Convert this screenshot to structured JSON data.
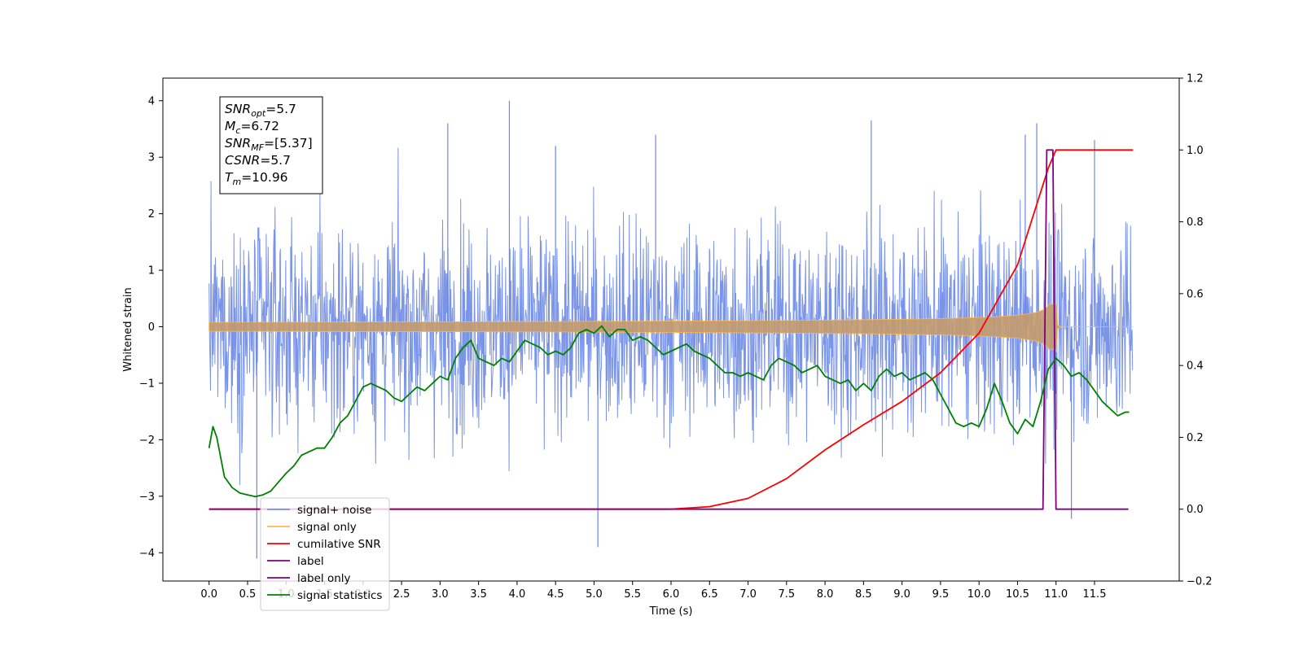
{
  "chart_data": {
    "type": "line",
    "xlabel": "Time (s)",
    "ylabel_left": "Whitened strain",
    "ylabel_right": "",
    "xlim": [
      -0.6,
      12.6
    ],
    "ylim_left": [
      -4.5,
      4.4
    ],
    "ylim_right": [
      -0.2,
      1.2
    ],
    "x_ticks": [
      "0.0",
      "0.5",
      "1.0",
      "1.5",
      "2.0",
      "2.5",
      "3.0",
      "3.5",
      "4.0",
      "4.5",
      "5.0",
      "5.5",
      "6.0",
      "6.5",
      "7.0",
      "7.5",
      "8.0",
      "8.5",
      "9.0",
      "9.5",
      "10.0",
      "10.5",
      "11.0",
      "11.5"
    ],
    "y_ticks_left": [
      "4",
      "3",
      "2",
      "1",
      "0",
      "−1",
      "−2",
      "−3",
      "−4"
    ],
    "y_ticks_right": [
      "1.2",
      "1.0",
      "0.8",
      "0.6",
      "0.4",
      "0.2",
      "0.0",
      "−0.2"
    ],
    "grid": false,
    "legend_position": "lower-left",
    "series": [
      {
        "name": "signal+ noise",
        "axis": "left",
        "color": "#6b88e6",
        "kind": "noise",
        "x_range": [
          0.0,
          12.0
        ],
        "std": 0.9,
        "peak": [
          -4.1,
          4.0
        ]
      },
      {
        "name": "signal only",
        "axis": "left",
        "color": "#ffb84d",
        "kind": "chirp",
        "x_range": [
          0.0,
          12.0
        ],
        "merger_time": 10.96,
        "peak_amplitude": 0.4
      },
      {
        "name": "cumilative SNR",
        "axis": "right",
        "color": "#ff0000",
        "x": [
          0.0,
          6.0,
          6.5,
          7.0,
          7.5,
          8.0,
          8.5,
          9.0,
          9.5,
          10.0,
          10.5,
          10.9,
          11.0,
          12.0
        ],
        "values": [
          0.0,
          0.0,
          0.007,
          0.03,
          0.085,
          0.165,
          0.235,
          0.3,
          0.38,
          0.49,
          0.68,
          0.95,
          1.0,
          1.0
        ]
      },
      {
        "name": "label",
        "axis": "right",
        "color": "#800080",
        "x": [
          0.0,
          10.83,
          10.88,
          10.96,
          11.0,
          11.94
        ],
        "values": [
          0.0,
          0.0,
          1.0,
          1.0,
          0.0,
          0.0
        ]
      },
      {
        "name": "label only",
        "axis": "right",
        "color": "#800080",
        "x": [],
        "values": []
      },
      {
        "name": "signal statistics",
        "axis": "right",
        "color": "#008000",
        "x": [
          0.0,
          0.05,
          0.1,
          0.2,
          0.3,
          0.4,
          0.5,
          0.6,
          0.7,
          0.8,
          0.9,
          1.0,
          1.1,
          1.2,
          1.3,
          1.4,
          1.5,
          1.6,
          1.7,
          1.8,
          1.9,
          2.0,
          2.1,
          2.2,
          2.3,
          2.4,
          2.5,
          2.6,
          2.7,
          2.8,
          2.9,
          3.0,
          3.1,
          3.2,
          3.3,
          3.4,
          3.5,
          3.6,
          3.7,
          3.8,
          3.9,
          4.0,
          4.1,
          4.2,
          4.3,
          4.4,
          4.5,
          4.6,
          4.7,
          4.8,
          4.9,
          5.0,
          5.1,
          5.2,
          5.3,
          5.4,
          5.5,
          5.6,
          5.7,
          5.8,
          5.9,
          6.0,
          6.1,
          6.2,
          6.3,
          6.4,
          6.5,
          6.6,
          6.7,
          6.8,
          6.9,
          7.0,
          7.1,
          7.2,
          7.3,
          7.4,
          7.5,
          7.6,
          7.7,
          7.8,
          7.9,
          8.0,
          8.1,
          8.2,
          8.3,
          8.4,
          8.5,
          8.6,
          8.7,
          8.8,
          8.9,
          9.0,
          9.1,
          9.2,
          9.3,
          9.4,
          9.5,
          9.6,
          9.7,
          9.8,
          9.9,
          10.0,
          10.1,
          10.2,
          10.3,
          10.4,
          10.5,
          10.6,
          10.7,
          10.8,
          10.9,
          11.0,
          11.1,
          11.2,
          11.3,
          11.4,
          11.5,
          11.6,
          11.7,
          11.8,
          11.9,
          11.95
        ],
        "values": [
          0.17,
          0.23,
          0.2,
          0.09,
          0.06,
          0.045,
          0.04,
          0.035,
          0.04,
          0.05,
          0.075,
          0.1,
          0.12,
          0.15,
          0.16,
          0.17,
          0.17,
          0.2,
          0.24,
          0.26,
          0.3,
          0.34,
          0.35,
          0.34,
          0.33,
          0.31,
          0.3,
          0.32,
          0.34,
          0.33,
          0.35,
          0.37,
          0.36,
          0.42,
          0.45,
          0.47,
          0.42,
          0.41,
          0.4,
          0.42,
          0.41,
          0.44,
          0.47,
          0.46,
          0.45,
          0.43,
          0.44,
          0.43,
          0.45,
          0.49,
          0.5,
          0.49,
          0.51,
          0.48,
          0.5,
          0.5,
          0.47,
          0.48,
          0.47,
          0.45,
          0.43,
          0.44,
          0.45,
          0.46,
          0.44,
          0.43,
          0.42,
          0.4,
          0.38,
          0.38,
          0.37,
          0.38,
          0.37,
          0.36,
          0.4,
          0.42,
          0.41,
          0.4,
          0.38,
          0.39,
          0.4,
          0.37,
          0.36,
          0.35,
          0.36,
          0.33,
          0.35,
          0.33,
          0.37,
          0.39,
          0.37,
          0.38,
          0.36,
          0.37,
          0.38,
          0.36,
          0.32,
          0.28,
          0.24,
          0.23,
          0.24,
          0.23,
          0.28,
          0.35,
          0.3,
          0.24,
          0.21,
          0.25,
          0.23,
          0.3,
          0.39,
          0.42,
          0.4,
          0.37,
          0.38,
          0.36,
          0.33,
          0.3,
          0.28,
          0.26,
          0.27,
          0.27
        ]
      }
    ],
    "annotation": {
      "lines": [
        {
          "math": "SNR",
          "sub": "opt",
          "value": "=5.7"
        },
        {
          "math": "M",
          "sub": "c",
          "value": "=6.72"
        },
        {
          "math": "SNR",
          "sub": "MF",
          "value": "=[5.37]"
        },
        {
          "math": "CSNR",
          "sub": "",
          "value": "=5.7"
        },
        {
          "math": "T",
          "sub": "m",
          "value": "=10.96"
        }
      ]
    }
  }
}
